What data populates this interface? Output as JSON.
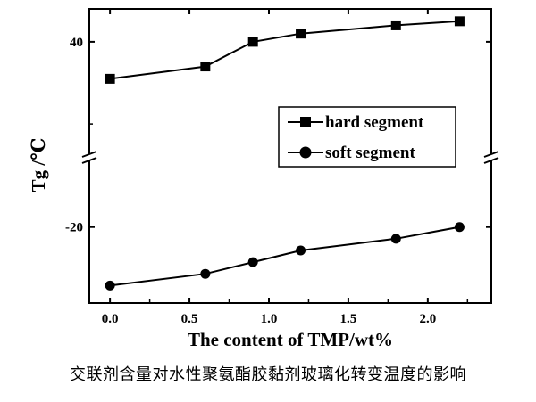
{
  "chart_data": {
    "type": "line",
    "xlabel": "The content of TMP/wt%",
    "ylabel": "Tg /℃",
    "x_ticks": [
      "0.0",
      "0.5",
      "1.0",
      "1.5",
      "2.0"
    ],
    "xlim": [
      -0.13,
      2.4
    ],
    "y_upper": {
      "ticks": [
        "40"
      ],
      "tick_values": [
        40
      ],
      "ylim": [
        12,
        48
      ]
    },
    "y_lower": {
      "ticks": [
        "-20"
      ],
      "tick_values": [
        -20
      ],
      "ylim": [
        -33,
        -8
      ]
    },
    "axis_break": true,
    "legend_position": "center-right",
    "series": [
      {
        "name": "hard segment",
        "marker": "square",
        "panel": "upper",
        "x": [
          0.0,
          0.6,
          0.9,
          1.2,
          1.8,
          2.2
        ],
        "y": [
          31,
          34,
          40,
          42,
          44,
          45
        ]
      },
      {
        "name": "soft segment",
        "marker": "circle",
        "panel": "lower",
        "x": [
          0.0,
          0.6,
          0.9,
          1.2,
          1.8,
          2.2
        ],
        "y": [
          -30,
          -28,
          -26,
          -24,
          -22,
          -20
        ]
      }
    ]
  },
  "caption": "交联剂含量对水性聚氨酯胶黏剂玻璃化转变温度的影响"
}
